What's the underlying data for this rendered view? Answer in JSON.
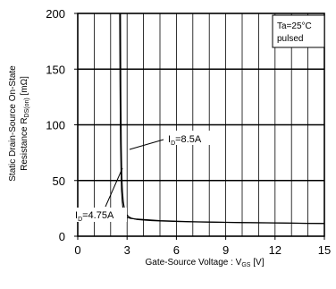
{
  "chart_data": {
    "type": "line",
    "title": "",
    "xlabel": {
      "main": "Gate-Source Voltage : V",
      "sub": "GS",
      "unit": " [V]"
    },
    "ylabel": {
      "line1": "Static Drain-Source On-State",
      "line2_main": "Resistance  R",
      "line2_sub": "DS(on)",
      "line2_unit": " [mΩ]"
    },
    "xlim": [
      0,
      15
    ],
    "ylim": [
      0,
      200
    ],
    "xticks": [
      0,
      3,
      6,
      9,
      12,
      15
    ],
    "yticks": [
      0,
      50,
      100,
      150,
      200
    ],
    "grid": true,
    "legend": {
      "line1": "Ta=25°C",
      "line2": "pulsed",
      "placement": "top-right"
    },
    "series": [
      {
        "label": "ID=8.5A",
        "x": [
          2.55,
          2.57,
          2.6,
          2.63,
          2.66,
          2.7,
          2.75,
          2.8,
          2.9,
          3.0,
          3.2,
          3.5,
          4.0,
          4.5,
          5.0,
          6.0,
          7.0,
          8.0,
          9.0,
          10.0,
          11.0,
          12.0,
          13.0,
          14.0,
          15.0
        ],
        "y": [
          200,
          140,
          85,
          60,
          42,
          32,
          25,
          21,
          18,
          17,
          16,
          15.5,
          15,
          14.5,
          14,
          13.5,
          13,
          12.8,
          12.5,
          12.3,
          12.2,
          12.0,
          11.8,
          11.6,
          11.5
        ]
      },
      {
        "label": "ID=4.75A",
        "x": [
          2.6,
          2.62,
          2.65,
          2.68,
          2.72,
          2.78,
          2.85,
          2.95,
          3.1,
          3.3,
          3.6,
          4.0,
          4.5,
          5.0,
          6.0,
          7.0,
          8.0,
          9.0,
          10.0,
          11.0,
          12.0,
          13.0,
          14.0,
          15.0
        ],
        "y": [
          200,
          130,
          80,
          55,
          40,
          30,
          24,
          20,
          17.5,
          16,
          15,
          14.5,
          14,
          13.7,
          13.2,
          12.9,
          12.6,
          12.4,
          12.2,
          12.0,
          11.9,
          11.7,
          11.5,
          11.4
        ]
      }
    ],
    "annotations": [
      {
        "main": "I",
        "sub": "D",
        "rest": "=8.5A"
      },
      {
        "main": "I",
        "sub": "D",
        "rest": "=4.75A"
      }
    ]
  }
}
